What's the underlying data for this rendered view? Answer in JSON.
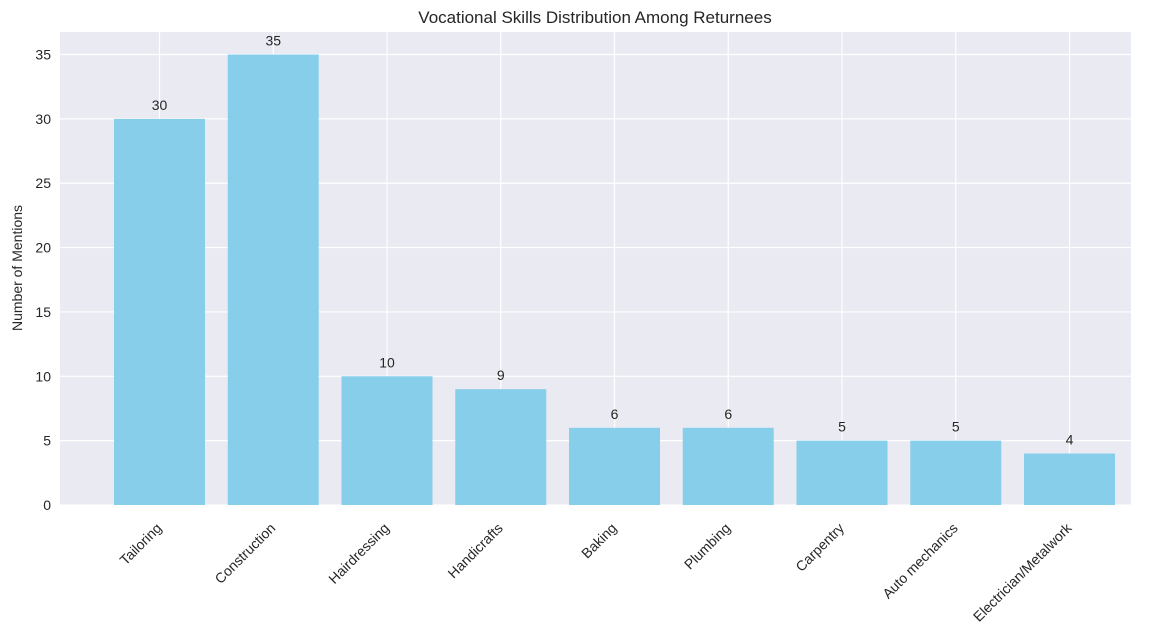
{
  "chart_data": {
    "type": "bar",
    "title": "Vocational Skills Distribution Among Returnees",
    "xlabel": "",
    "ylabel": "Number of Mentions",
    "categories": [
      "Tailoring",
      "Construction",
      "Hairdressing",
      "Handicrafts",
      "Baking",
      "Plumbing",
      "Carpentry",
      "Auto mechanics",
      "Electrician/Metalwork"
    ],
    "values": [
      30,
      35,
      10,
      9,
      6,
      6,
      5,
      5,
      4
    ],
    "ylim": [
      0,
      36.75
    ],
    "yticks": [
      0,
      5,
      10,
      15,
      20,
      25,
      30,
      35
    ],
    "grid": true,
    "colors": {
      "bar": "#87ceeb",
      "plot_background": "#eaeaf2",
      "grid": "#ffffff",
      "text": "#262626"
    }
  }
}
